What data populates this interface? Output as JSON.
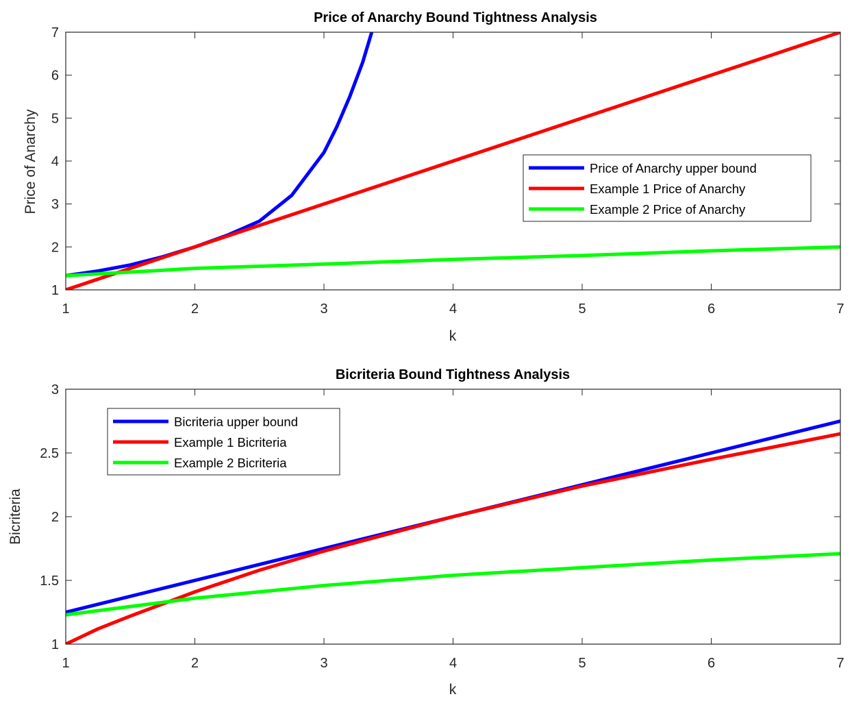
{
  "chart_data": [
    {
      "type": "line",
      "title": "Price of Anarchy Bound Tightness Analysis",
      "xlabel": "k",
      "ylabel": "Price of Anarchy",
      "xlim": [
        1,
        7
      ],
      "ylim": [
        1,
        7
      ],
      "xticks": [
        "1",
        "2",
        "3",
        "4",
        "5",
        "6",
        "7"
      ],
      "yticks": [
        "1",
        "2",
        "3",
        "4",
        "5",
        "6",
        "7"
      ],
      "grid": false,
      "legend_position": "right",
      "series": [
        {
          "name": "Price of Anarchy upper bound",
          "color": "#0000ff",
          "x": [
            1,
            1.25,
            1.5,
            1.75,
            2,
            2.25,
            2.5,
            2.75,
            3,
            3.1,
            3.2,
            3.3,
            3.4,
            3.43
          ],
          "y": [
            1.33,
            1.44,
            1.58,
            1.77,
            2.0,
            2.27,
            2.6,
            3.2,
            4.2,
            4.8,
            5.5,
            6.3,
            7.3,
            7.8
          ]
        },
        {
          "name": "Example 1 Price of Anarchy",
          "color": "#ff0000",
          "x": [
            1,
            7
          ],
          "y": [
            1,
            7
          ]
        },
        {
          "name": "Example 2 Price of Anarchy",
          "color": "#00ff00",
          "x": [
            1,
            2,
            3,
            4,
            5,
            6,
            7
          ],
          "y": [
            1.33,
            1.5,
            1.6,
            1.71,
            1.8,
            1.91,
            2.0
          ]
        }
      ]
    },
    {
      "type": "line",
      "title": "Bicriteria Bound Tightness Analysis",
      "xlabel": "k",
      "ylabel": "Bicriteria",
      "xlim": [
        1,
        7
      ],
      "ylim": [
        1,
        3
      ],
      "xticks": [
        "1",
        "2",
        "3",
        "4",
        "5",
        "6",
        "7"
      ],
      "yticks": [
        "1",
        "1.5",
        "2",
        "2.5",
        "3"
      ],
      "grid": false,
      "legend_position": "top-left",
      "series": [
        {
          "name": "Bicriteria upper bound",
          "color": "#0000ff",
          "x": [
            1,
            7
          ],
          "y": [
            1.25,
            2.75
          ]
        },
        {
          "name": "Example 1 Bicriteria",
          "color": "#ff0000",
          "x": [
            1,
            1.25,
            1.5,
            2,
            2.5,
            3,
            4,
            5,
            6,
            7
          ],
          "y": [
            1.0,
            1.12,
            1.22,
            1.41,
            1.58,
            1.73,
            2.0,
            2.24,
            2.45,
            2.65
          ]
        },
        {
          "name": "Example 2 Bicriteria",
          "color": "#00ff00",
          "x": [
            1,
            2,
            3,
            4,
            5,
            6,
            7
          ],
          "y": [
            1.23,
            1.36,
            1.46,
            1.54,
            1.6,
            1.66,
            1.71
          ]
        }
      ]
    }
  ]
}
